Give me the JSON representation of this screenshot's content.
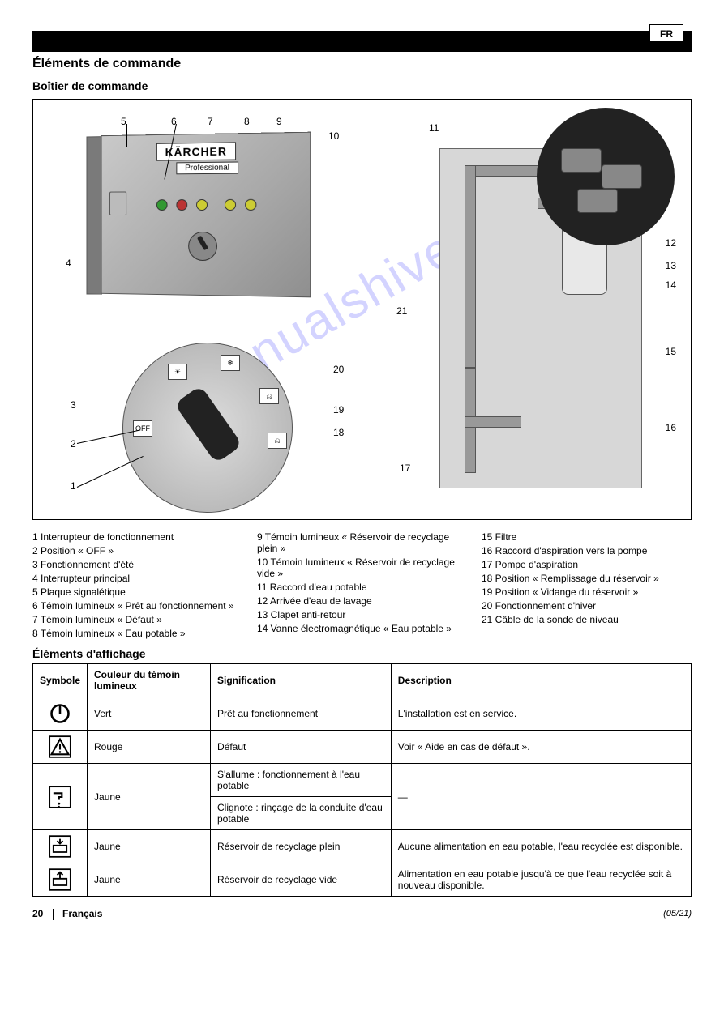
{
  "page_tab": "FR",
  "heading_main": "Éléments de commande",
  "heading_sub": "Boîtier de commande",
  "watermark": "manualshive.com",
  "brand": "KÄRCHER",
  "brand_sub": "Professional",
  "dial_positions": {
    "off": "OFF",
    "sun": "☀",
    "snow": "❄",
    "drain": "⎌",
    "fill": "⎌"
  },
  "leader_numbers": [
    "1",
    "2",
    "3",
    "4",
    "5",
    "6",
    "7",
    "8",
    "9",
    "10",
    "11",
    "12",
    "13",
    "14",
    "15",
    "16",
    "17",
    "18",
    "19",
    "20",
    "21"
  ],
  "legend_items": [
    {
      "n": "1",
      "t": "Interrupteur de fonctionnement"
    },
    {
      "n": "2",
      "t": "Position « OFF »"
    },
    {
      "n": "3",
      "t": "Fonctionnement d'été"
    },
    {
      "n": "4",
      "t": "Interrupteur principal"
    },
    {
      "n": "5",
      "t": "Plaque signalétique"
    },
    {
      "n": "6",
      "t": "Témoin lumineux « Prêt au fonctionnement »"
    },
    {
      "n": "7",
      "t": "Témoin lumineux « Défaut »"
    },
    {
      "n": "8",
      "t": "Témoin lumineux « Eau potable »"
    },
    {
      "n": "9",
      "t": "Témoin lumineux « Réservoir de recyclage plein »"
    },
    {
      "n": "10",
      "t": "Témoin lumineux « Réservoir de recyclage vide »"
    },
    {
      "n": "11",
      "t": "Raccord d'eau potable"
    },
    {
      "n": "12",
      "t": "Arrivée d'eau de lavage"
    },
    {
      "n": "13",
      "t": "Clapet anti-retour"
    },
    {
      "n": "14",
      "t": "Vanne électromagnétique « Eau potable »"
    },
    {
      "n": "15",
      "t": "Filtre"
    },
    {
      "n": "16",
      "t": "Raccord d'aspiration vers la pompe"
    },
    {
      "n": "17",
      "t": "Pompe d'aspiration"
    },
    {
      "n": "18",
      "t": "Position « Remplissage du réservoir »"
    },
    {
      "n": "19",
      "t": "Position « Vidange du réservoir »"
    },
    {
      "n": "20",
      "t": "Fonctionnement d'hiver"
    },
    {
      "n": "21",
      "t": "Câble de la sonde de niveau"
    }
  ],
  "table_title": "Éléments d'affichage",
  "table": {
    "headers": [
      "Symbole",
      "Couleur du témoin lumineux",
      "Signification",
      "Description"
    ],
    "col_widths_pct": [
      8,
      22,
      35,
      35
    ],
    "rows": [
      {
        "symbol": "power",
        "color": "Vert",
        "meaning": "Prêt au fonctionnement",
        "desc": "L'installation est en service.",
        "rowspan_color": 1,
        "rowspan_desc": 1
      },
      {
        "symbol": "warn",
        "color": "Rouge",
        "meaning": "Défaut",
        "desc": "Voir « Aide en cas de défaut »."
      },
      {
        "symbol": "tap",
        "color": "Jaune",
        "meaning_rows": [
          "S'allume : fonctionnement à l'eau potable",
          "Clignote : rinçage de la conduite d'eau potable"
        ],
        "desc": "—"
      },
      {
        "symbol": "tankfull",
        "color": "Jaune",
        "meaning": "Réservoir de recyclage plein",
        "desc": "Aucune alimentation en eau potable, l'eau recyclée est disponible."
      },
      {
        "symbol": "tankempty",
        "color": "Jaune",
        "meaning": "Réservoir de recyclage vide",
        "desc": "Alimentation en eau potable jusqu'à ce que l'eau recyclée soit à nouveau disponible."
      }
    ]
  },
  "footer_left_page": "20",
  "footer_left_lang": "Français",
  "footer_right": "(05/21)",
  "colors": {
    "bg": "#ffffff",
    "text": "#000000",
    "metal_light": "#c9c9c9",
    "metal_dark": "#8f8f8f",
    "plate": "#d7d7d7",
    "watermark": "rgba(80,80,255,0.25)"
  },
  "typography": {
    "body_pt": 12,
    "heading_pt": 16,
    "subhead_pt": 14,
    "legend_pt": 12,
    "table_pt": 12
  }
}
